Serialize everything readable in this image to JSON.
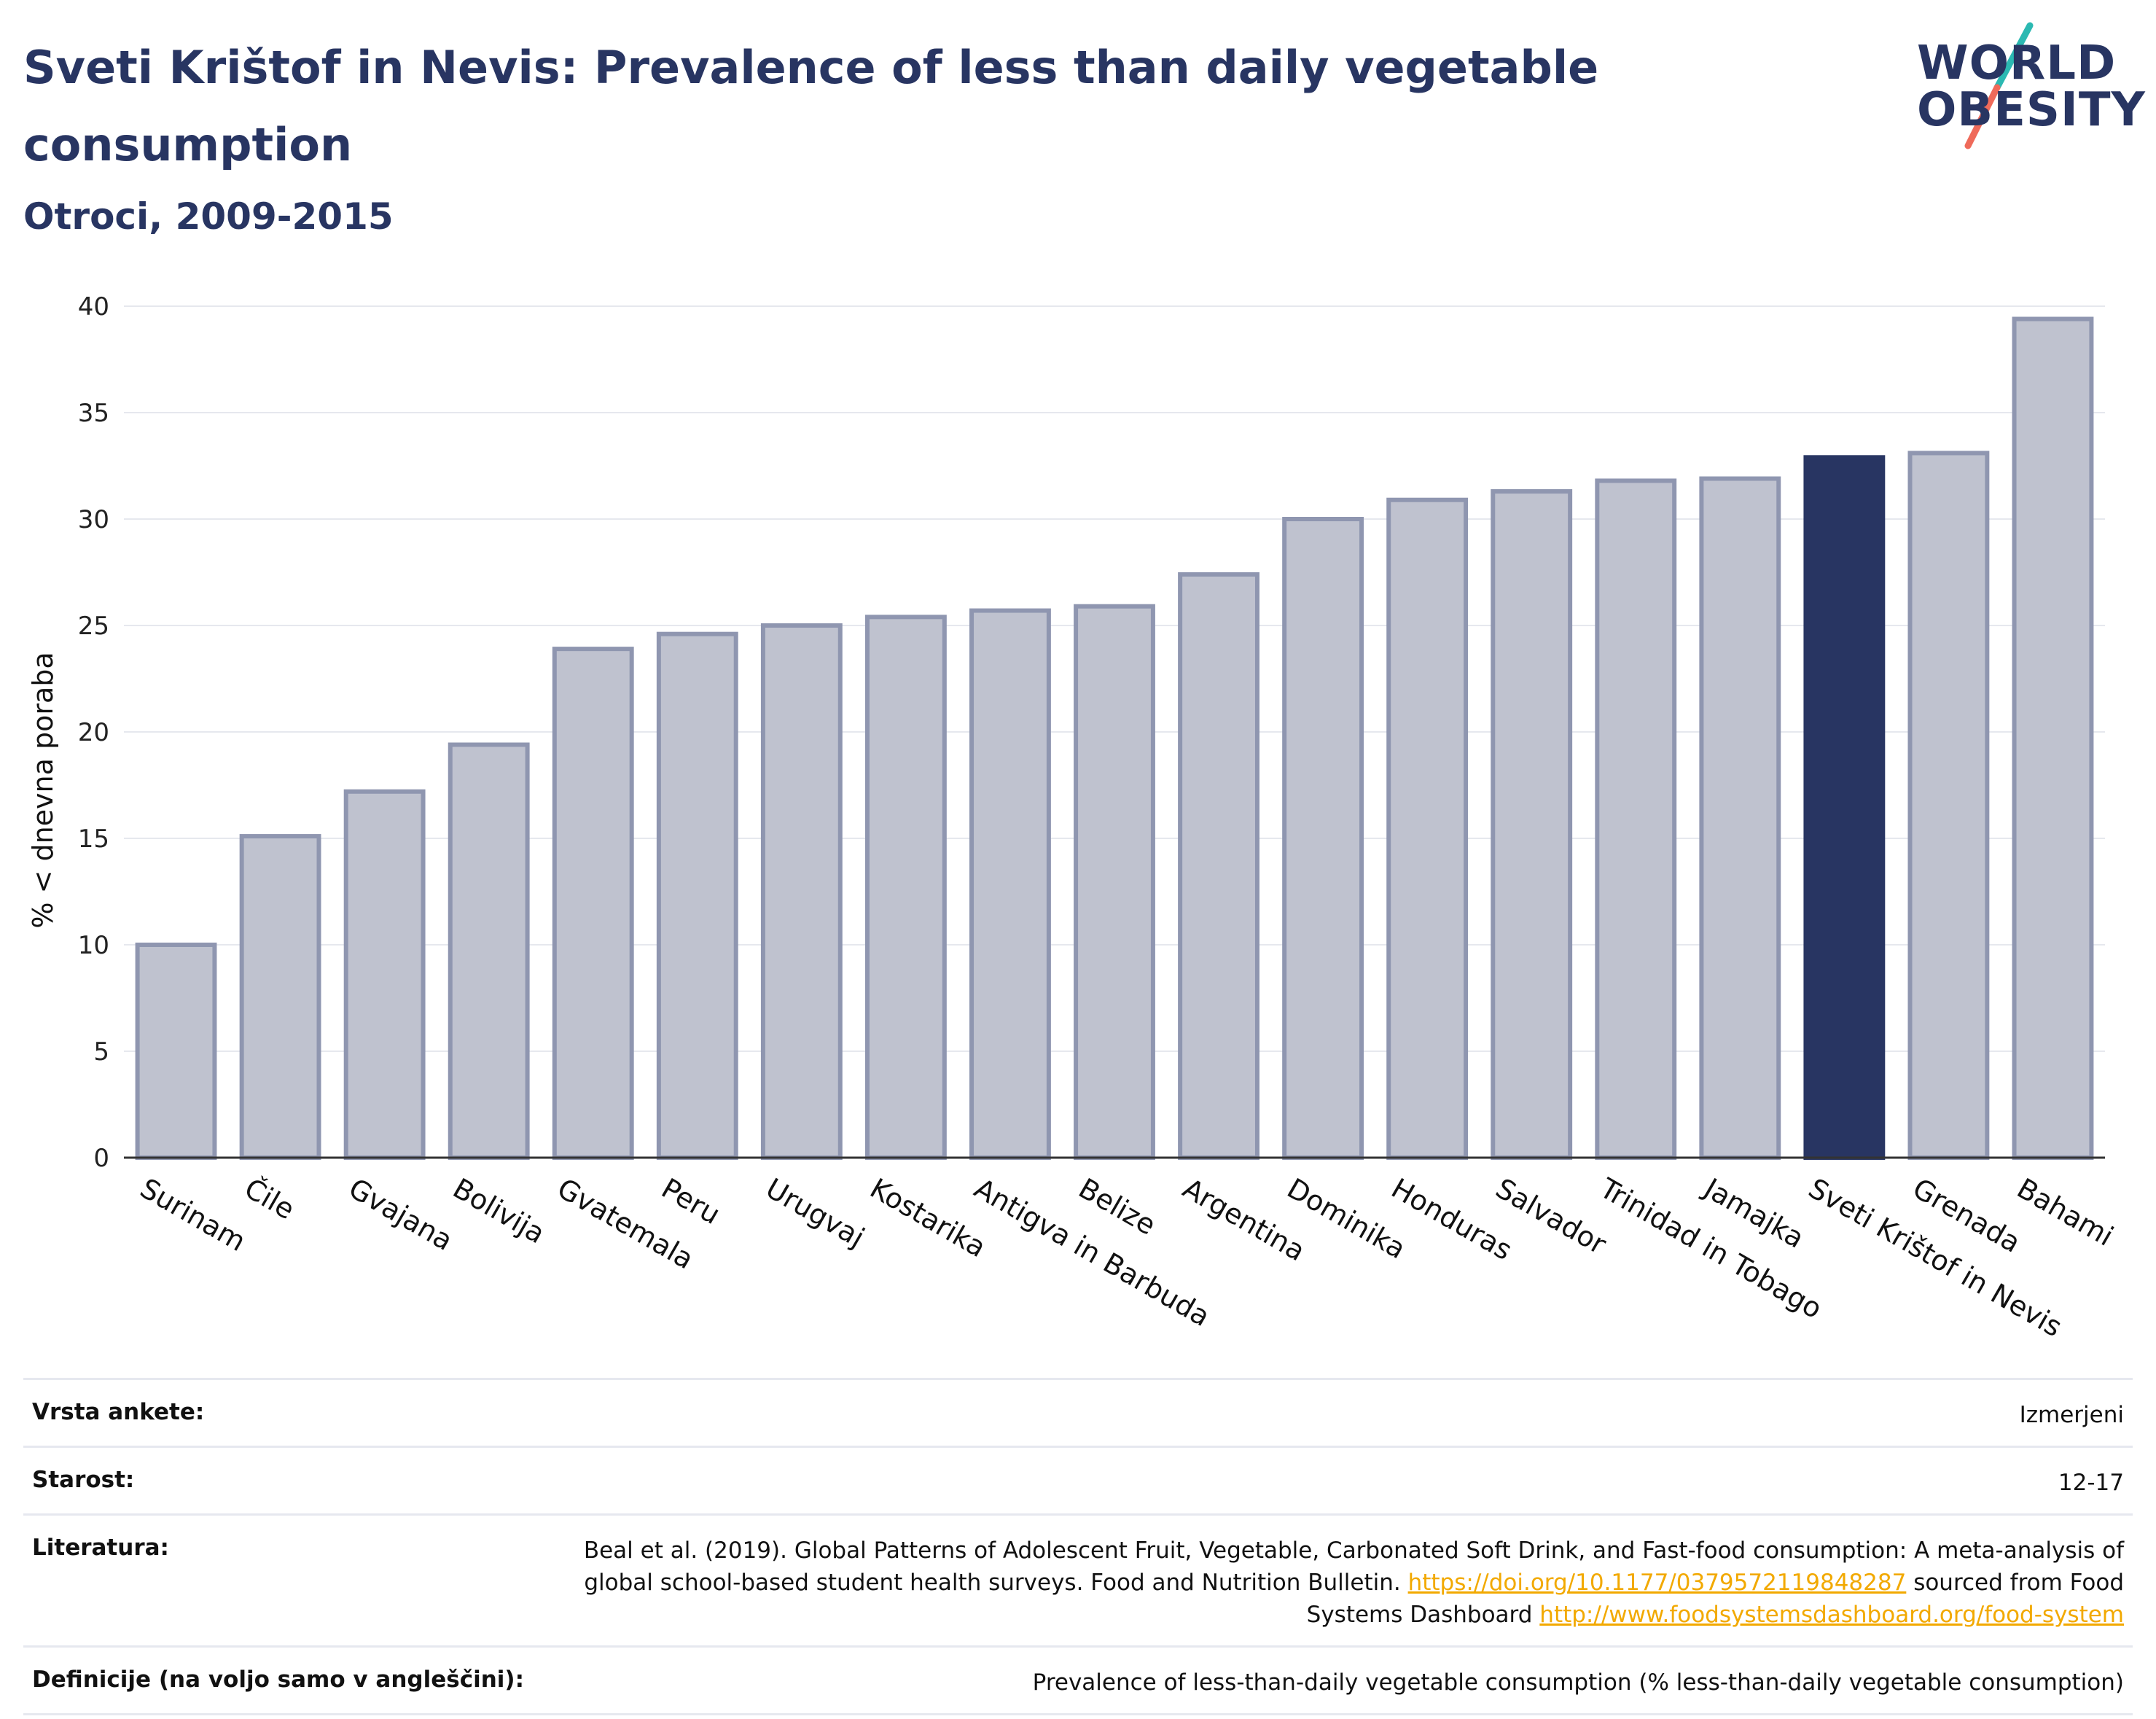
{
  "header": {
    "title": "Sveti Krištof in Nevis: Prevalence of less than daily vegetable consumption",
    "subtitle": "Otroci, 2009-2015",
    "logo_line1": "WORLD",
    "logo_line2": "OBESITY"
  },
  "colors": {
    "highlight": "#283562",
    "bar_fill": "#bfc2cf",
    "bar_stroke": "#8f96b0",
    "link": "#f2a900",
    "logo_teal": "#2bb9b2",
    "logo_coral": "#ef6a5a"
  },
  "chart_data": {
    "type": "bar",
    "title": "Sveti Krištof in Nevis: Prevalence of less than daily vegetable consumption",
    "subtitle": "Otroci, 2009-2015",
    "ylabel": "% < dnevna poraba",
    "xlabel": "",
    "ylim": [
      0,
      40
    ],
    "yticks": [
      0,
      5,
      10,
      15,
      20,
      25,
      30,
      35,
      40
    ],
    "grid": true,
    "highlight": "Sveti Krištof in Nevis",
    "categories": [
      "Surinam",
      "Čile",
      "Gvajana",
      "Bolivija",
      "Gvatemala",
      "Peru",
      "Urugvaj",
      "Kostarika",
      "Antigva in Barbuda",
      "Belize",
      "Argentina",
      "Dominika",
      "Honduras",
      "Salvador",
      "Trinidad in Tobago",
      "Jamajka",
      "Sveti Krištof in Nevis",
      "Grenada",
      "Bahami"
    ],
    "values": [
      10.0,
      15.1,
      17.2,
      19.4,
      23.9,
      24.6,
      25.0,
      25.4,
      25.7,
      25.9,
      27.4,
      30.0,
      30.9,
      31.3,
      31.8,
      31.9,
      32.9,
      33.1,
      39.4
    ]
  },
  "meta": [
    {
      "label": "Vrsta ankete:",
      "value": "Izmerjeni"
    },
    {
      "label": "Starost:",
      "value": "12-17"
    },
    {
      "label": "Literatura:",
      "value": "Beal et al. (2019). Global Patterns of Adolescent Fruit, Vegetable, Carbonated Soft Drink, and Fast-food consumption: A meta-analysis of global school-based student health surveys. Food and Nutrition Bulletin.",
      "link1": "https://doi.org/10.1177/0379572119848287",
      "mid": "sourced from Food Systems Dashboard",
      "link2": "http://www.foodsystemsdashboard.org/food-system"
    },
    {
      "label": "Definicije (na voljo samo v angleščini):",
      "value": "Prevalence of less-than-daily vegetable consumption (% less-than-daily vegetable consumption)"
    }
  ]
}
